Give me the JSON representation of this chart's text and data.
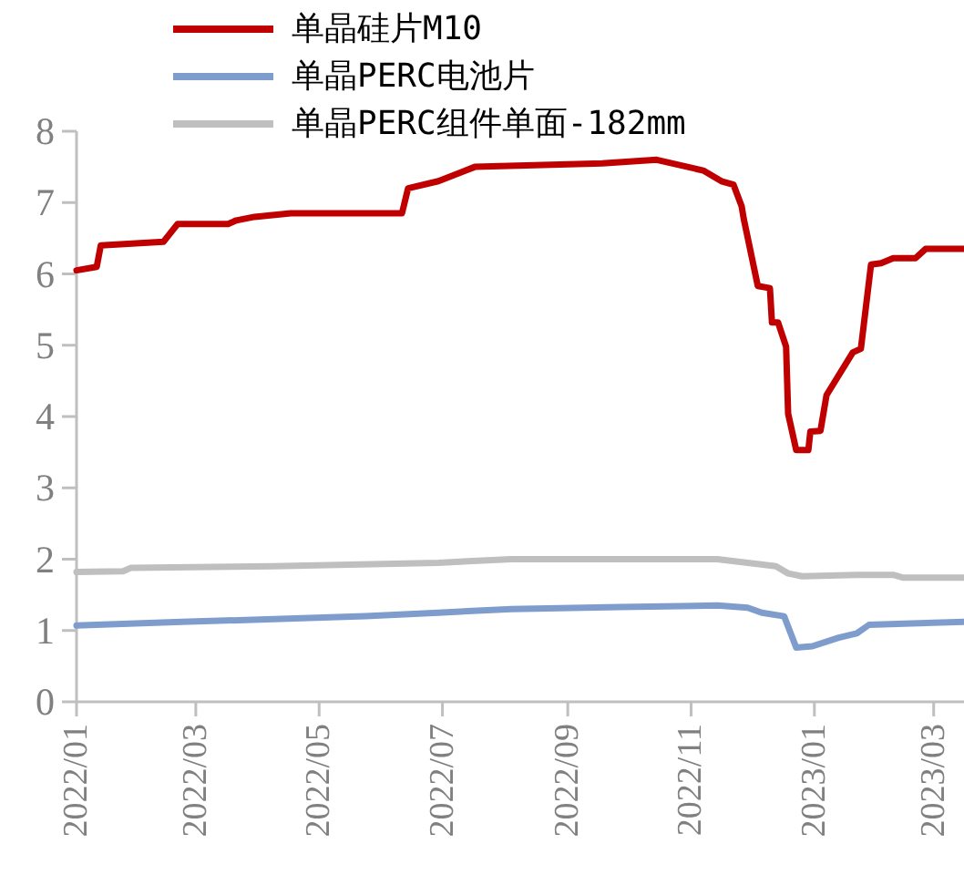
{
  "chart_data": {
    "type": "line",
    "legend": "top",
    "grid": false,
    "marker": "none",
    "line_style": "solid",
    "xlim": [
      "2022-01-01",
      "2023-03-16"
    ],
    "xticks": [
      {
        "value": "2022-01-01",
        "label": "2022/01"
      },
      {
        "value": "2022-03-01",
        "label": "2022/03"
      },
      {
        "value": "2022-05-01",
        "label": "2022/05"
      },
      {
        "value": "2022-07-01",
        "label": "2022/07"
      },
      {
        "value": "2022-09-01",
        "label": "2022/09"
      },
      {
        "value": "2022-11-01",
        "label": "2022/11"
      },
      {
        "value": "2023-01-01",
        "label": "2023/01"
      },
      {
        "value": "2023-03-01",
        "label": "2023/03"
      }
    ],
    "ylim": [
      0,
      8
    ],
    "yticks": [
      0,
      1,
      2,
      3,
      4,
      5,
      6,
      7,
      8
    ],
    "series": [
      {
        "name": "单晶硅片M10",
        "color": "#c00000",
        "x": [
          "2022-01-01",
          "2022-01-11",
          "2022-01-13",
          "2022-02-13",
          "2022-02-20",
          "2022-03-17",
          "2022-03-21",
          "2022-03-30",
          "2022-04-17",
          "2022-06-11",
          "2022-06-14",
          "2022-06-29",
          "2022-07-17",
          "2022-09-18",
          "2022-10-15",
          "2022-11-07",
          "2022-11-16",
          "2022-11-22",
          "2022-11-26",
          "2022-11-27",
          "2022-12-04",
          "2022-12-10",
          "2022-12-11",
          "2022-12-14",
          "2022-12-18",
          "2022-12-19",
          "2022-12-23",
          "2022-12-29",
          "2022-12-30",
          "2023-01-04",
          "2023-01-07",
          "2023-01-20",
          "2023-01-24",
          "2023-01-29",
          "2023-02-03",
          "2023-02-09",
          "2023-02-20",
          "2023-02-25",
          "2023-03-16"
        ],
        "values": [
          6.05,
          6.1,
          6.4,
          6.45,
          6.7,
          6.7,
          6.75,
          6.8,
          6.85,
          6.85,
          7.2,
          7.3,
          7.5,
          7.55,
          7.6,
          7.45,
          7.3,
          7.25,
          6.95,
          6.78,
          5.83,
          5.8,
          5.32,
          5.32,
          4.98,
          4.04,
          3.53,
          3.53,
          3.79,
          3.8,
          4.3,
          4.9,
          4.95,
          6.13,
          6.15,
          6.22,
          6.22,
          6.35,
          6.35
        ]
      },
      {
        "name": "单晶PERC电池片",
        "color": "#7f9dcc",
        "x": [
          "2022-01-01",
          "2022-02-22",
          "2022-05-24",
          "2022-06-29",
          "2022-08-04",
          "2022-09-27",
          "2022-11-14",
          "2022-11-29",
          "2022-12-06",
          "2022-12-17",
          "2022-12-23",
          "2022-12-31",
          "2023-01-13",
          "2023-01-22",
          "2023-01-28",
          "2023-02-18",
          "2023-03-16"
        ],
        "values": [
          1.07,
          1.12,
          1.2,
          1.25,
          1.3,
          1.33,
          1.35,
          1.32,
          1.25,
          1.2,
          0.76,
          0.78,
          0.9,
          0.96,
          1.08,
          1.1,
          1.12
        ]
      },
      {
        "name": "单晶PERC组件单面-182mm",
        "color": "#bfbfbf",
        "x": [
          "2022-01-01",
          "2022-01-24",
          "2022-01-28",
          "2022-04-08",
          "2022-06-29",
          "2022-08-04",
          "2022-11-14",
          "2022-11-29",
          "2022-12-13",
          "2022-12-19",
          "2022-12-26",
          "2023-01-22",
          "2023-02-09",
          "2023-02-14",
          "2023-03-16"
        ],
        "values": [
          1.82,
          1.83,
          1.88,
          1.9,
          1.95,
          2.0,
          2.0,
          1.95,
          1.9,
          1.8,
          1.76,
          1.78,
          1.78,
          1.74,
          1.74
        ]
      }
    ]
  }
}
